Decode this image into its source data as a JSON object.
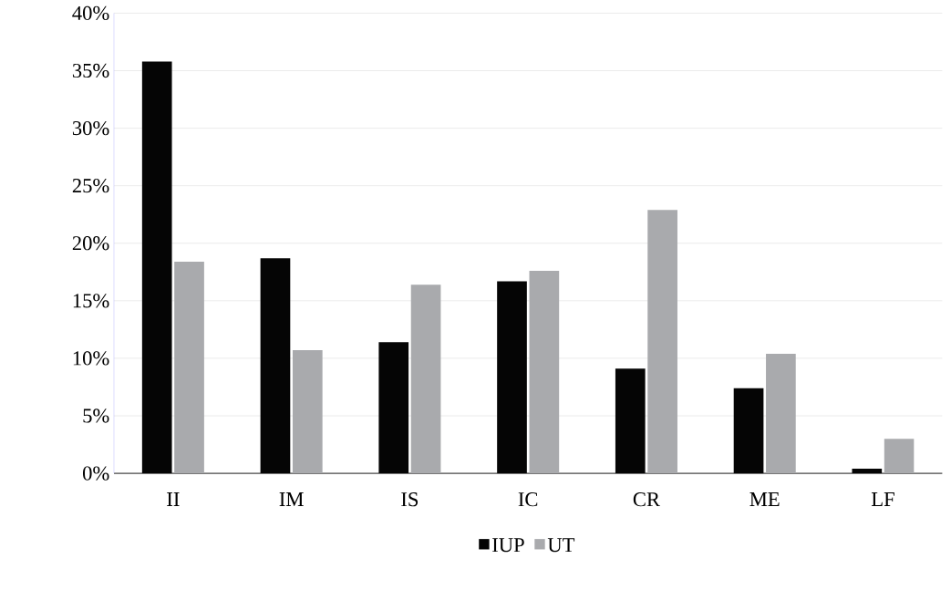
{
  "chart_data": {
    "type": "bar",
    "categories": [
      "II",
      "IM",
      "IS",
      "IC",
      "CR",
      "ME",
      "LF"
    ],
    "series": [
      {
        "name": "IUP",
        "color": "#050505",
        "values": [
          35.8,
          18.7,
          11.4,
          16.7,
          9.1,
          7.4,
          0.4
        ]
      },
      {
        "name": "UT",
        "color": "#a9aaad",
        "values": [
          18.4,
          10.7,
          16.4,
          17.6,
          22.9,
          10.4,
          3.0
        ]
      }
    ],
    "ylim": [
      0,
      40
    ],
    "yticks": [
      {
        "value": 0,
        "label": "0%"
      },
      {
        "value": 5,
        "label": "5%"
      },
      {
        "value": 10,
        "label": "10%"
      },
      {
        "value": 15,
        "label": "15%"
      },
      {
        "value": 20,
        "label": "20%"
      },
      {
        "value": 25,
        "label": "25%"
      },
      {
        "value": 30,
        "label": "30%"
      },
      {
        "value": 35,
        "label": "35%"
      },
      {
        "value": 40,
        "label": "40%"
      }
    ],
    "grid": "y",
    "legend": "bottom"
  }
}
